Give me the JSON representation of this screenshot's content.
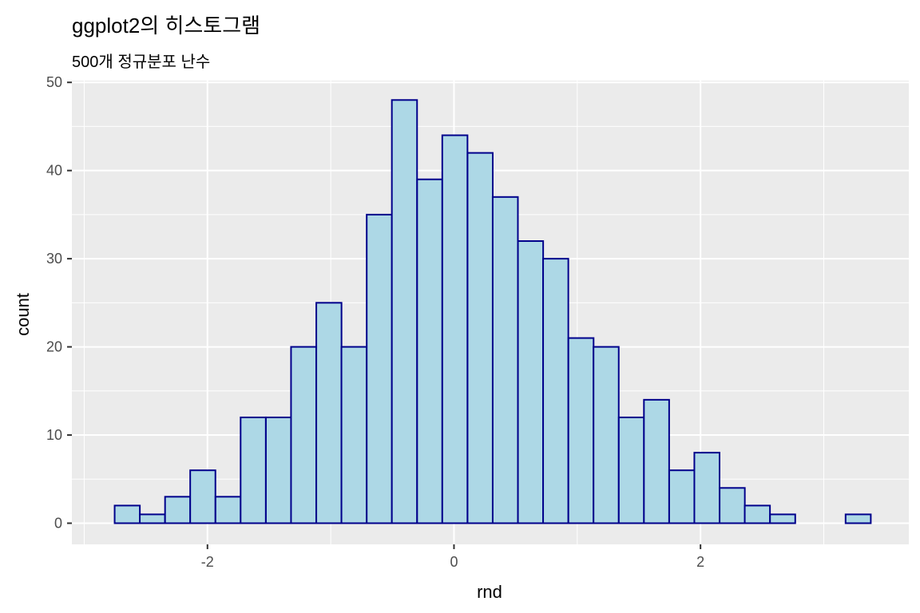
{
  "chart_data": {
    "type": "bar",
    "title": "ggplot2의 히스토그램",
    "subtitle": "500개 정규분포 난수",
    "xlabel": "rnd",
    "ylabel": "count",
    "xlim": [
      -3.1,
      3.69
    ],
    "ylim": [
      -2.4,
      50.2
    ],
    "x_ticks": [
      -2,
      0,
      2
    ],
    "y_ticks": [
      0,
      10,
      20,
      30,
      40,
      50
    ],
    "grid": true,
    "bin_width": 0.2045,
    "bins": [
      {
        "x_start": -2.753,
        "count": 2
      },
      {
        "x_start": -2.549,
        "count": 1
      },
      {
        "x_start": -2.344,
        "count": 3
      },
      {
        "x_start": -2.14,
        "count": 6
      },
      {
        "x_start": -1.935,
        "count": 3
      },
      {
        "x_start": -1.731,
        "count": 12
      },
      {
        "x_start": -1.526,
        "count": 12
      },
      {
        "x_start": -1.322,
        "count": 20
      },
      {
        "x_start": -1.117,
        "count": 25
      },
      {
        "x_start": -0.913,
        "count": 20
      },
      {
        "x_start": -0.708,
        "count": 35
      },
      {
        "x_start": -0.504,
        "count": 48
      },
      {
        "x_start": -0.299,
        "count": 39
      },
      {
        "x_start": -0.095,
        "count": 44
      },
      {
        "x_start": 0.11,
        "count": 42
      },
      {
        "x_start": 0.314,
        "count": 37
      },
      {
        "x_start": 0.519,
        "count": 32
      },
      {
        "x_start": 0.723,
        "count": 30
      },
      {
        "x_start": 0.928,
        "count": 21
      },
      {
        "x_start": 1.132,
        "count": 20
      },
      {
        "x_start": 1.337,
        "count": 12
      },
      {
        "x_start": 1.541,
        "count": 14
      },
      {
        "x_start": 1.746,
        "count": 6
      },
      {
        "x_start": 1.95,
        "count": 8
      },
      {
        "x_start": 2.155,
        "count": 4
      },
      {
        "x_start": 2.359,
        "count": 2
      },
      {
        "x_start": 2.564,
        "count": 1
      },
      {
        "x_start": 2.768,
        "count": 0
      },
      {
        "x_start": 2.973,
        "count": 0
      },
      {
        "x_start": 3.177,
        "count": 1
      }
    ],
    "colors": {
      "fill": "#ADD8E6",
      "outline": "#00008B",
      "panel": "#EBEBEB",
      "grid": "#FFFFFF"
    }
  }
}
